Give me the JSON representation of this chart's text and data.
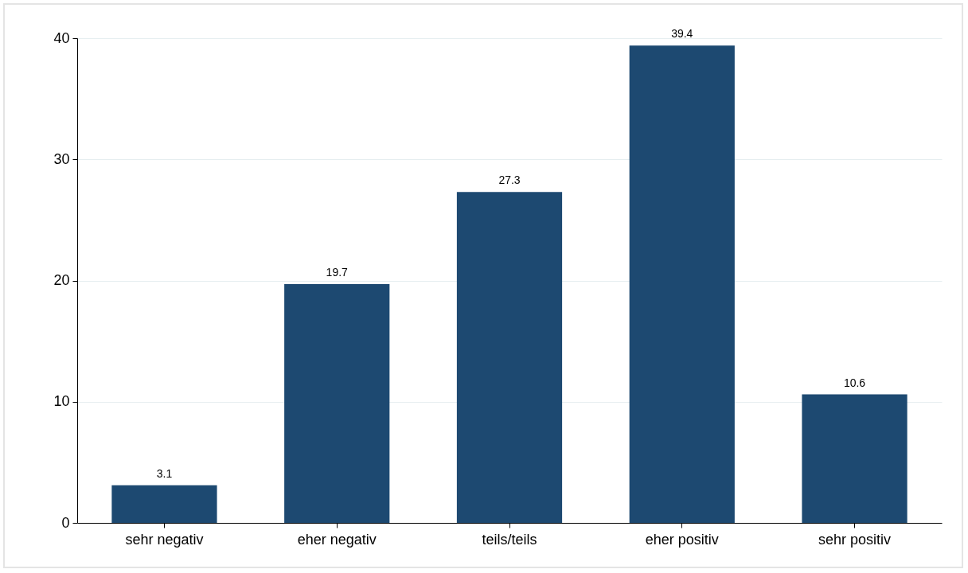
{
  "chart_data": {
    "type": "bar",
    "categories": [
      "sehr negativ",
      "eher negativ",
      "teils/teils",
      "eher positiv",
      "sehr positiv"
    ],
    "values": [
      3.1,
      19.7,
      27.3,
      39.4,
      10.6
    ],
    "color": "#1d4971",
    "ylim": [
      0,
      40
    ],
    "yticks": [
      0,
      10,
      20,
      30,
      40
    ],
    "grid": "y",
    "data_labels": true
  }
}
